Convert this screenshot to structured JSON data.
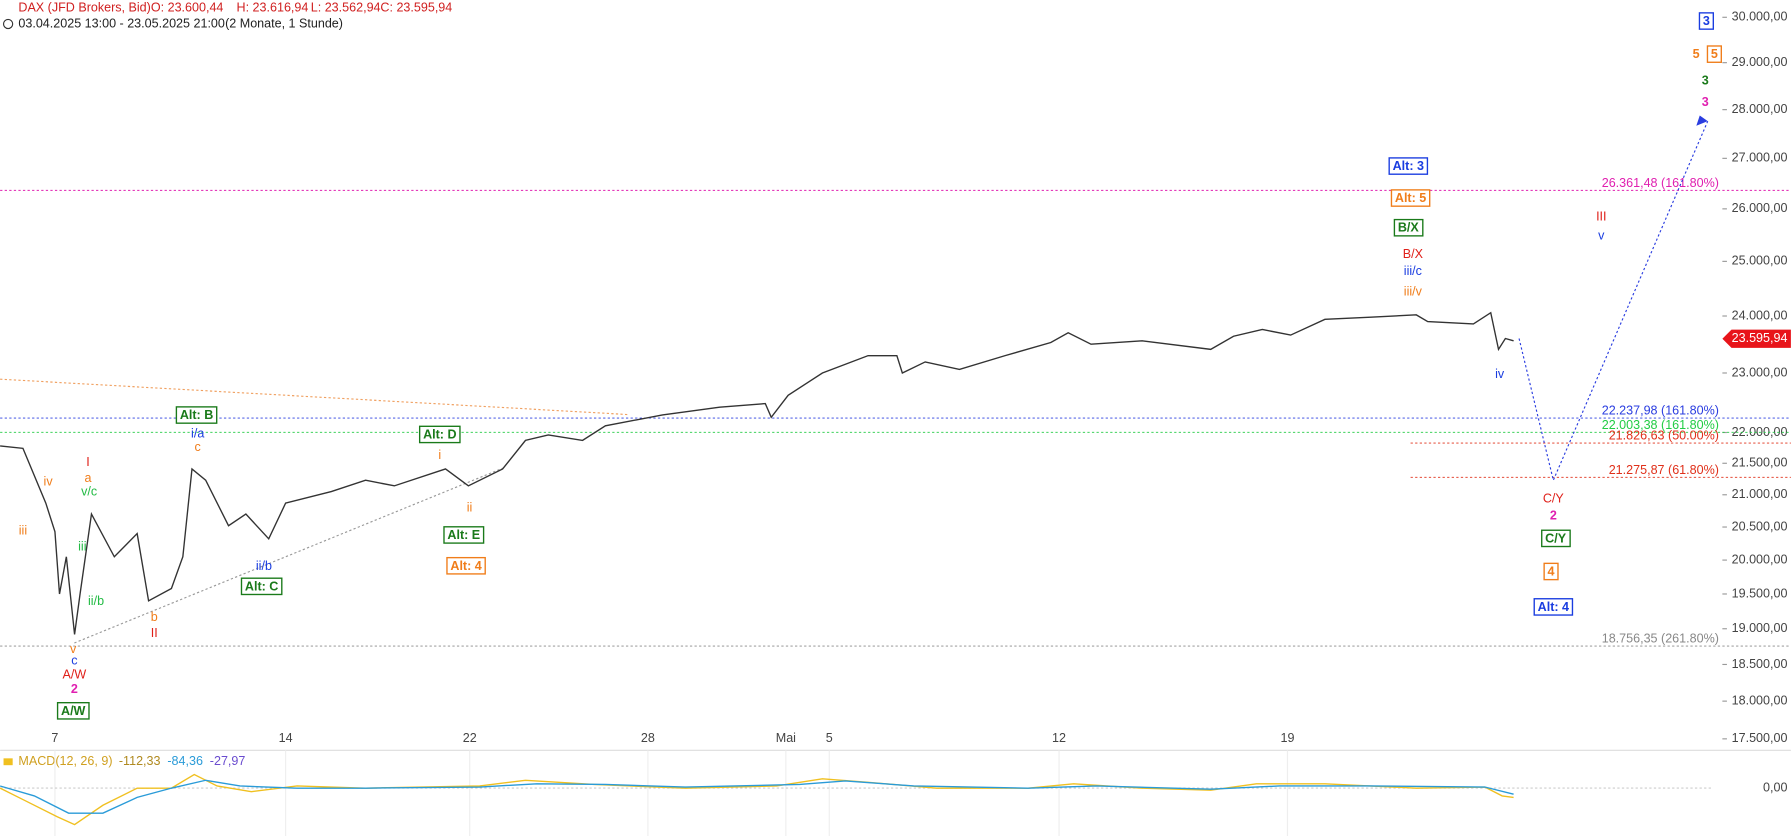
{
  "header": {
    "title": "DAX (JFD Brokers, Bid)",
    "open": "O: 23.600,44",
    "high": "H: 23.616,94",
    "low": "L: 23.562,94",
    "close": "C: 23.595,94",
    "range": "03.04.2025 13:00 - 23.05.2025 21:00",
    "span": "(2 Monate, 1 Stunde)"
  },
  "chart_data": [
    {
      "type": "line",
      "log_scale": true,
      "x": [
        0,
        0.5,
        1,
        1.2,
        1.3,
        1.45,
        1.63,
        1.75,
        2,
        2.5,
        3,
        3.25,
        3.75,
        4,
        4.2,
        4.5,
        5,
        5.38,
        5.88,
        6.25,
        7.25,
        8,
        8.63,
        9.75,
        10.25,
        11,
        11.5,
        12,
        12.75,
        13.25,
        14.5,
        15.75,
        16.75,
        16.88,
        17.25,
        18,
        19,
        19.63,
        19.75,
        20.25,
        21,
        22,
        23,
        23.38,
        23.88,
        25,
        26.5,
        27,
        27.63,
        28.25,
        29,
        30,
        31,
        31.25,
        32.25,
        32.63,
        32.8,
        32.95,
        33.13
      ],
      "series": [
        {
          "color": "#333333",
          "values": [
            21780,
            21740,
            20870,
            20430,
            19500,
            20050,
            18920,
            19500,
            20700,
            20050,
            20400,
            19400,
            19580,
            20050,
            21410,
            21230,
            20520,
            20700,
            20320,
            20870,
            21050,
            21230,
            21140,
            21410,
            21140,
            21410,
            21870,
            21960,
            21870,
            22110,
            22290,
            22420,
            22480,
            22250,
            22620,
            23000,
            23300,
            23300,
            23000,
            23190,
            23060,
            23300,
            23530,
            23700,
            23500,
            23560,
            23410,
            23640,
            23760,
            23660,
            23940,
            23980,
            24020,
            23900,
            23860,
            24060,
            23410,
            23600,
            23560
          ]
        }
      ],
      "xlim": [
        0,
        37.5
      ],
      "xticks": [
        {
          "value": 1.2,
          "label": "7"
        },
        {
          "value": 6.25,
          "label": "14"
        },
        {
          "value": 10.28,
          "label": "22"
        },
        {
          "value": 14.18,
          "label": "28"
        },
        {
          "value": 17.2,
          "label": "Mai"
        },
        {
          "value": 18.15,
          "label": "5"
        },
        {
          "value": 23.18,
          "label": "12"
        },
        {
          "value": 28.18,
          "label": "19"
        }
      ],
      "ylim": [
        17380,
        30390
      ],
      "yticks": [
        {
          "value": 17500,
          "label": "17.500,00"
        },
        {
          "value": 18000,
          "label": "18.000,00"
        },
        {
          "value": 18500,
          "label": "18.500,00"
        },
        {
          "value": 19000,
          "label": "19.000,00"
        },
        {
          "value": 19500,
          "label": "19.500,00"
        },
        {
          "value": 20000,
          "label": "20.000,00"
        },
        {
          "value": 20500,
          "label": "20.500,00"
        },
        {
          "value": 21000,
          "label": "21.000,00"
        },
        {
          "value": 21500,
          "label": "21.500,00"
        },
        {
          "value": 22000,
          "label": "22.000,00"
        },
        {
          "value": 23000,
          "label": "23.000,00"
        },
        {
          "value": 24000,
          "label": "24.000,00"
        },
        {
          "value": 25000,
          "label": "25.000,00"
        },
        {
          "value": 26000,
          "label": "26.000,00"
        },
        {
          "value": 27000,
          "label": "27.000,00"
        },
        {
          "value": 28000,
          "label": "28.000,00"
        },
        {
          "value": 29000,
          "label": "29.000,00"
        },
        {
          "value": 30000,
          "label": "30.000,00"
        }
      ],
      "last_price": {
        "value": 23595.94,
        "label": "23.595,94",
        "color": "#e8141a"
      },
      "levels": [
        {
          "value": 26361.48,
          "label": "26.361,48 (161.80%)",
          "color": "#e020b0"
        },
        {
          "value": 22237.98,
          "label": "22.237,98 (161.80%)",
          "color": "#2a3de0"
        },
        {
          "value": 22003.38,
          "label": "22.003,38 (161.80%)",
          "color": "#22cc44"
        },
        {
          "value": 21826.63,
          "label": "21.826,63 (50.00%)",
          "color": "#e0301a"
        },
        {
          "value": 21275.87,
          "label": "21.275,87 (61.80%)",
          "color": "#e0301a"
        },
        {
          "value": 18756.35,
          "label": "18.756,35 (261.80%)",
          "color": "#888888"
        }
      ],
      "projection": {
        "x": [
          33.25,
          34,
          37.38
        ],
        "values": [
          23600,
          21230,
          27760
        ],
        "color": "#2a3de0"
      },
      "annotations": [
        {
          "text": "3",
          "color": "#1a3de0",
          "boxed": true
        },
        {
          "text": "5",
          "color": "#f07d1a",
          "boxed": false
        },
        {
          "text": "5",
          "color": "#f07d1a",
          "boxed": true
        },
        {
          "text": "3",
          "color": "#1a7a1a",
          "boxed": false
        },
        {
          "text": "3",
          "color": "#e020b0",
          "boxed": false
        },
        {
          "text": "Alt: 3",
          "color": "#1a3de0",
          "boxed": true
        },
        {
          "text": "Alt: 5",
          "color": "#f07d1a",
          "boxed": true
        },
        {
          "text": "B/X",
          "color": "#1a7a1a",
          "boxed": true
        },
        {
          "text": "B/X",
          "color": "#e0201a",
          "boxed": false
        },
        {
          "text": "iii/c",
          "color": "#1a3de0",
          "boxed": false
        },
        {
          "text": "iii/v",
          "color": "#f07d1a",
          "boxed": false
        },
        {
          "text": "III",
          "color": "#e0201a",
          "boxed": false
        },
        {
          "text": "v",
          "color": "#1a3de0",
          "boxed": false
        },
        {
          "text": "iv",
          "color": "#1a3de0",
          "boxed": false
        },
        {
          "text": "C/Y",
          "color": "#e0201a",
          "boxed": false
        },
        {
          "text": "2",
          "color": "#e020b0",
          "boxed": false
        },
        {
          "text": "C/Y",
          "color": "#1a7a1a",
          "boxed": true
        },
        {
          "text": "4",
          "color": "#f07d1a",
          "boxed": true
        },
        {
          "text": "Alt: 4",
          "color": "#1a3de0",
          "boxed": true
        },
        {
          "text": "Alt: B",
          "color": "#1a7a1a",
          "boxed": true
        },
        {
          "text": "i/a",
          "color": "#1a3de0",
          "boxed": false
        },
        {
          "text": "c",
          "color": "#f07d1a",
          "boxed": false
        },
        {
          "text": "I",
          "color": "#e0201a",
          "boxed": false
        },
        {
          "text": "a",
          "color": "#f07d1a",
          "boxed": false
        },
        {
          "text": "v/c",
          "color": "#22bb44",
          "boxed": false
        },
        {
          "text": "iv",
          "color": "#f07d1a",
          "boxed": false
        },
        {
          "text": "iii",
          "color": "#f07d1a",
          "boxed": false
        },
        {
          "text": "iii",
          "color": "#22bb44",
          "boxed": false
        },
        {
          "text": "ii/b",
          "color": "#22bb44",
          "boxed": false
        },
        {
          "text": "b",
          "color": "#f07d1a",
          "boxed": false
        },
        {
          "text": "II",
          "color": "#e0201a",
          "boxed": false
        },
        {
          "text": "v",
          "color": "#f07d1a",
          "boxed": false
        },
        {
          "text": "c",
          "color": "#1a3de0",
          "boxed": false
        },
        {
          "text": "A/W",
          "color": "#e0201a",
          "boxed": false
        },
        {
          "text": "2",
          "color": "#e020b0",
          "boxed": false
        },
        {
          "text": "A/W",
          "color": "#1a7a1a",
          "boxed": true
        },
        {
          "text": "ii/b",
          "color": "#1a3de0",
          "boxed": false
        },
        {
          "text": "Alt: C",
          "color": "#1a7a1a",
          "boxed": true
        },
        {
          "text": "Alt: D",
          "color": "#1a7a1a",
          "boxed": true
        },
        {
          "text": "i",
          "color": "#f07d1a",
          "boxed": false
        },
        {
          "text": "ii",
          "color": "#f07d1a",
          "boxed": false
        },
        {
          "text": "Alt: E",
          "color": "#1a7a1a",
          "boxed": true
        },
        {
          "text": "Alt: 4",
          "color": "#f07d1a",
          "boxed": true
        }
      ]
    },
    {
      "type": "line",
      "title": "MACD(12, 26, 9)",
      "readout": [
        {
          "value": -112.33,
          "label": "-112,33",
          "color": "#b08a20"
        },
        {
          "value": -84.36,
          "label": "-84,36",
          "color": "#2a9bd8"
        },
        {
          "value": -27.97,
          "label": "-27,97",
          "color": "#6a4ccf"
        }
      ],
      "xlim": [
        0,
        37.5
      ],
      "ylim": [
        -670,
        480
      ],
      "yticks": [
        {
          "value": 0,
          "label": "0,00"
        }
      ],
      "series": [
        {
          "color": "#f0c020",
          "x": [
            0,
            0.5,
            1.25,
            1.63,
            2.25,
            3,
            3.75,
            4.25,
            4.75,
            5.5,
            6.5,
            8,
            10.5,
            11.5,
            13,
            15,
            17,
            18,
            19,
            20.5,
            22.5,
            23.5,
            25,
            26.5,
            27.5,
            29,
            31,
            32.5,
            32.88,
            33.13
          ],
          "values": [
            0,
            -160,
            -400,
            -510,
            -240,
            0,
            0,
            190,
            30,
            -50,
            30,
            0,
            30,
            110,
            50,
            0,
            30,
            130,
            80,
            0,
            0,
            60,
            0,
            -30,
            60,
            60,
            0,
            15,
            -110,
            -130
          ]
        },
        {
          "color": "#2a9bd8",
          "x": [
            0,
            0.75,
            1.5,
            2.25,
            3,
            3.75,
            4.5,
            5.25,
            6.5,
            8,
            10.5,
            11.75,
            13.25,
            15,
            17.5,
            18.5,
            20,
            22.5,
            24,
            26.5,
            28,
            30,
            32.5,
            33.13
          ],
          "values": [
            30,
            -110,
            -350,
            -350,
            -130,
            0,
            110,
            30,
            0,
            0,
            15,
            60,
            50,
            15,
            50,
            100,
            30,
            0,
            30,
            -15,
            30,
            30,
            15,
            -85
          ]
        }
      ]
    }
  ]
}
